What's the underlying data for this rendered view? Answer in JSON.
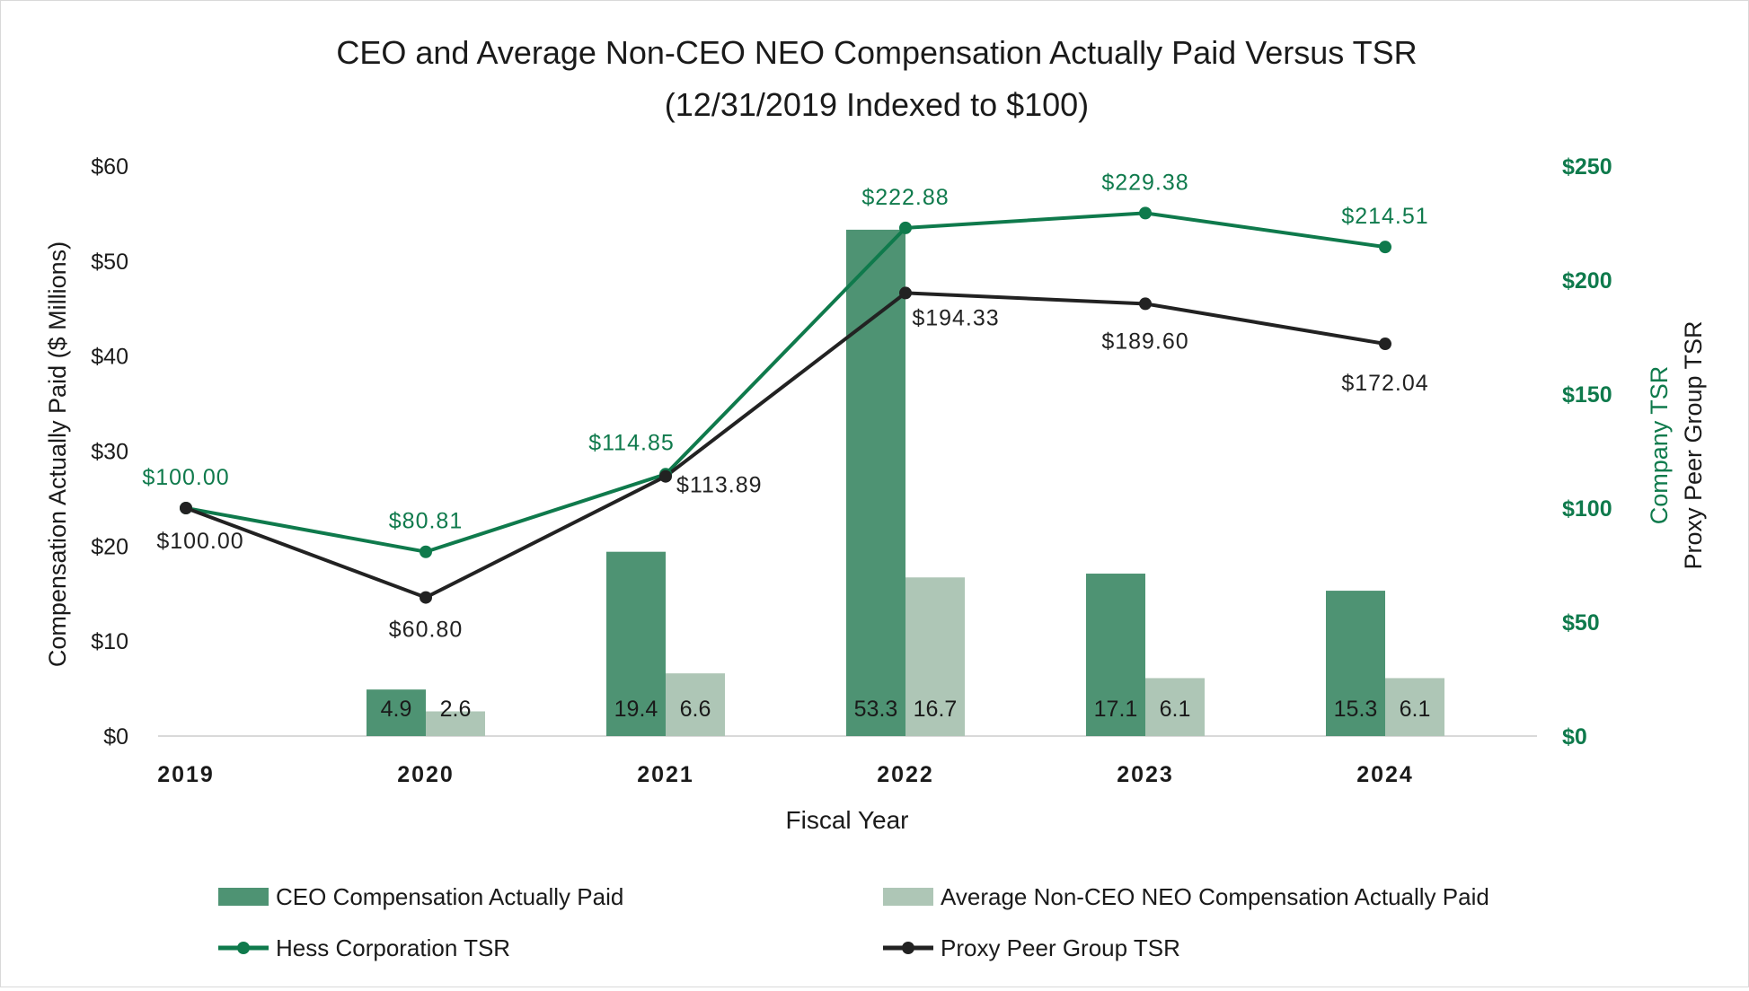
{
  "chart_data": {
    "type": "bar",
    "title_line1": "CEO and Average Non-CEO NEO Compensation Actually Paid Versus TSR",
    "title_line2": "(12/31/2019 Indexed to $100)",
    "xlabel": "Fiscal Year",
    "ylabel_left": "Compensation Actually Paid ($ Millions)",
    "ylabel_right_1": "Company TSR",
    "ylabel_right_2": "Proxy Peer Group TSR",
    "categories": [
      "2019",
      "2020",
      "2021",
      "2022",
      "2023",
      "2024"
    ],
    "ylim_left": [
      0,
      60
    ],
    "ylim_right": [
      0,
      250
    ],
    "left_ticks": [
      "$0",
      "$10",
      "$20",
      "$30",
      "$40",
      "$50",
      "$60"
    ],
    "right_ticks": [
      "$0",
      "$50",
      "$100",
      "$150",
      "$200",
      "$250"
    ],
    "bar_series": [
      {
        "name": "CEO Compensation Actually Paid",
        "color": "#4e9373",
        "values": [
          null,
          4.9,
          19.4,
          53.3,
          17.1,
          15.3
        ],
        "labels": [
          "",
          "4.9",
          "19.4",
          "53.3",
          "17.1",
          "15.3"
        ]
      },
      {
        "name": "Average Non-CEO NEO Compensation Actually Paid",
        "color": "#aec6b6",
        "values": [
          null,
          2.6,
          6.6,
          16.7,
          6.1,
          6.1
        ],
        "labels": [
          "",
          "2.6",
          "6.6",
          "16.7",
          "6.1",
          "6.1"
        ]
      }
    ],
    "line_series": [
      {
        "name": "Hess Corporation TSR",
        "color": "#0f7a4c",
        "values": [
          100.0,
          80.81,
          114.85,
          222.88,
          229.38,
          214.51
        ],
        "labels": [
          "$100.00",
          "$80.81",
          "$114.85",
          "$222.88",
          "$229.38",
          "$214.51"
        ],
        "label_position": "above"
      },
      {
        "name": "Proxy Peer Group TSR",
        "color": "#222222",
        "values": [
          100.0,
          60.8,
          113.89,
          194.33,
          189.6,
          172.04
        ],
        "labels": [
          "$100.00",
          "$60.80",
          "$113.89",
          "$194.33",
          "$189.60",
          "$172.04"
        ],
        "label_position": "below"
      }
    ],
    "legend": {
      "placement": "bottom",
      "items": [
        "CEO Compensation Actually Paid",
        "Average Non-CEO NEO Compensation Actually Paid",
        "Hess Corporation TSR",
        "Proxy Peer Group TSR"
      ]
    },
    "grid": false
  }
}
